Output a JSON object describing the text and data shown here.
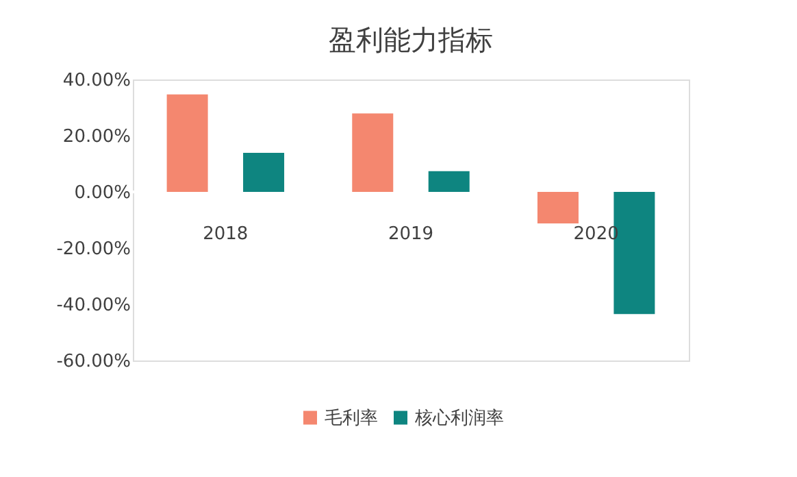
{
  "chart_data": {
    "type": "bar",
    "title": "盈利能力指标",
    "categories": [
      "2018",
      "2019",
      "2020"
    ],
    "series": [
      {
        "name": "毛利率",
        "color": "#f4876f",
        "values": [
          34.7,
          27.9,
          -11.2
        ]
      },
      {
        "name": "核心利润率",
        "color": "#0e8580",
        "values": [
          13.9,
          7.4,
          -43.5
        ]
      }
    ],
    "ylim": [
      -60,
      40
    ],
    "yticks": [
      {
        "value": -60,
        "label": "-60.00%"
      },
      {
        "value": -40,
        "label": "-40.00%"
      },
      {
        "value": -20,
        "label": "-20.00%"
      },
      {
        "value": 0,
        "label": "0.00%"
      },
      {
        "value": 20,
        "label": "20.00%"
      },
      {
        "value": 40,
        "label": "40.00%"
      }
    ],
    "grid": false,
    "legend": "bottom"
  }
}
